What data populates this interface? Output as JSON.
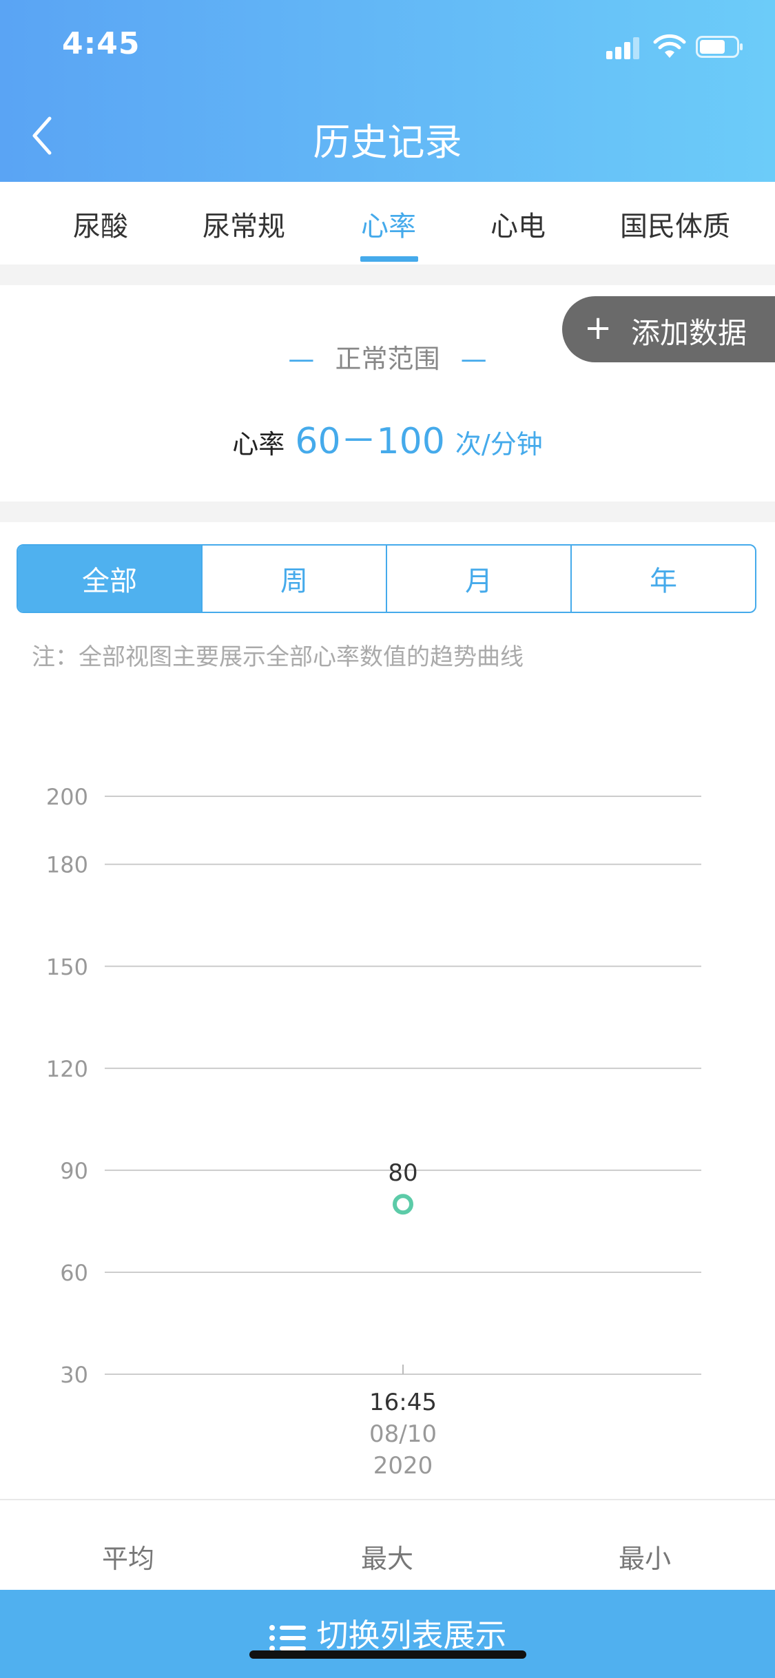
{
  "status_bar": {
    "time": "4:45"
  },
  "header": {
    "title": "历史记录"
  },
  "tabs": [
    {
      "label": "尿酸"
    },
    {
      "label": "尿常规"
    },
    {
      "label": "心率"
    },
    {
      "label": "心电"
    },
    {
      "label": "国民体质"
    }
  ],
  "active_tab": "心率",
  "range": {
    "title": "正常范围",
    "dash": "—",
    "label": "心率",
    "value": "60－100",
    "unit": "次/分钟"
  },
  "add_button": {
    "icon": "plus-icon",
    "label": "添加数据"
  },
  "segments": [
    {
      "label": "全部"
    },
    {
      "label": "周"
    },
    {
      "label": "月"
    },
    {
      "label": "年"
    }
  ],
  "selected_segment": "全部",
  "note": "注：全部视图主要展示全部心率数值的趋势曲线",
  "chart_data": {
    "type": "scatter",
    "y_ticks": [
      200,
      180,
      150,
      120,
      90,
      60,
      30
    ],
    "ylim": [
      30,
      200
    ],
    "grid": true,
    "points": [
      {
        "x_time": "16:45",
        "x_date": "08/10",
        "x_year": "2020",
        "y": 80,
        "label": "80"
      }
    ],
    "colors": {
      "point": "#5ccba8",
      "grid": "#cccccc",
      "tick": "#999999"
    }
  },
  "stats": [
    {
      "label": "平均"
    },
    {
      "label": "最大"
    },
    {
      "label": "最小"
    }
  ],
  "bottom_bar": {
    "icon": "list-icon",
    "label": "切换列表展示"
  },
  "colors": {
    "accent": "#45aaeb",
    "header_start": "#5aa4f4",
    "header_end": "#6cccf9"
  }
}
